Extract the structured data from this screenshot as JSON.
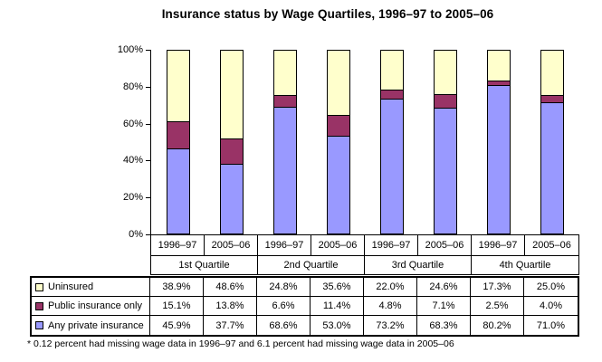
{
  "title": "Insurance status by Wage Quartiles, 1996–97 to 2005–06",
  "footnote": "* 0.12 percent had missing wage data in 1996–97 and 6.1 percent had missing wage data in 2005–06",
  "colors": {
    "uninsured": "#FFFFCC",
    "public_insurance_only": "#993366",
    "any_private_insurance": "#9999FF",
    "border": "#000000"
  },
  "chart_data": {
    "type": "bar",
    "stacked": true,
    "title": "Insurance status by Wage Quartiles, 1996–97 to 2005–06",
    "categories": [
      "1996–97",
      "2005–06",
      "1996–97",
      "2005–06",
      "1996–97",
      "2005–06",
      "1996–97",
      "2005–06"
    ],
    "group_labels": [
      "1st Quartile",
      "2nd Quartile",
      "3rd Quartile",
      "4th Quartile"
    ],
    "y_ticks": [
      "100%",
      "80%",
      "60%",
      "40%",
      "20%",
      "0%"
    ],
    "ylim": [
      0,
      100
    ],
    "grid": false,
    "legend_position": "table-left",
    "series": [
      {
        "name": "Uninsured",
        "color": "#FFFFCC",
        "values": [
          38.9,
          48.6,
          24.8,
          35.6,
          22.0,
          24.6,
          17.3,
          25.0
        ]
      },
      {
        "name": "Public insurance only",
        "color": "#993366",
        "values": [
          15.1,
          13.8,
          6.6,
          11.4,
          4.8,
          7.1,
          2.5,
          4.0
        ]
      },
      {
        "name": "Any private insurance",
        "color": "#9999FF",
        "values": [
          45.9,
          37.7,
          68.6,
          53.0,
          73.2,
          68.3,
          80.2,
          71.0
        ]
      }
    ]
  },
  "table": {
    "rows": [
      {
        "label": "Uninsured",
        "swatch": "#FFFFCC",
        "values": [
          "38.9%",
          "48.6%",
          "24.8%",
          "35.6%",
          "22.0%",
          "24.6%",
          "17.3%",
          "25.0%"
        ]
      },
      {
        "label": "Public insurance only",
        "swatch": "#993366",
        "values": [
          "15.1%",
          "13.8%",
          "6.6%",
          "11.4%",
          "4.8%",
          "7.1%",
          "2.5%",
          "4.0%"
        ]
      },
      {
        "label": "Any private insurance",
        "swatch": "#9999FF",
        "values": [
          "45.9%",
          "37.7%",
          "68.6%",
          "53.0%",
          "73.2%",
          "68.3%",
          "80.2%",
          "71.0%"
        ]
      }
    ]
  }
}
